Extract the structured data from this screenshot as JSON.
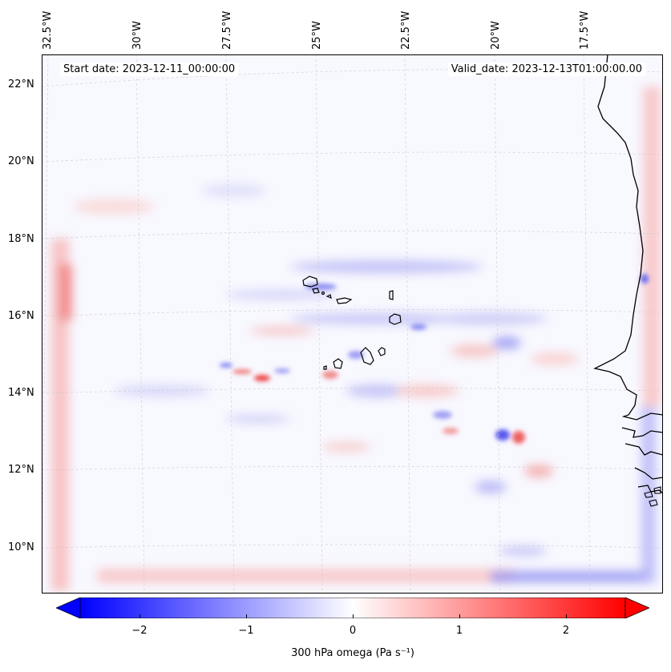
{
  "map": {
    "start_date": "Start date: 2023-12-11_00:00:00",
    "valid_date": "Valid_date: 2023-12-13T01:00:00.00",
    "lon_labels": [
      "32.5°W",
      "30°W",
      "27.5°W",
      "25°W",
      "22.5°W",
      "20°W",
      "17.5°W"
    ],
    "lat_labels": [
      "22°N",
      "20°N",
      "18°N",
      "16°N",
      "14°N",
      "12°N",
      "10°N"
    ]
  },
  "colorbar": {
    "label": "300 hPa omega (Pa s⁻¹)",
    "ticks": [
      "−2",
      "−1",
      "0",
      "1",
      "2"
    ],
    "min": -2.6,
    "max": 2.6,
    "colors": {
      "negative": "#0000ff",
      "zero": "#ffffff",
      "positive": "#ff0000"
    }
  }
}
